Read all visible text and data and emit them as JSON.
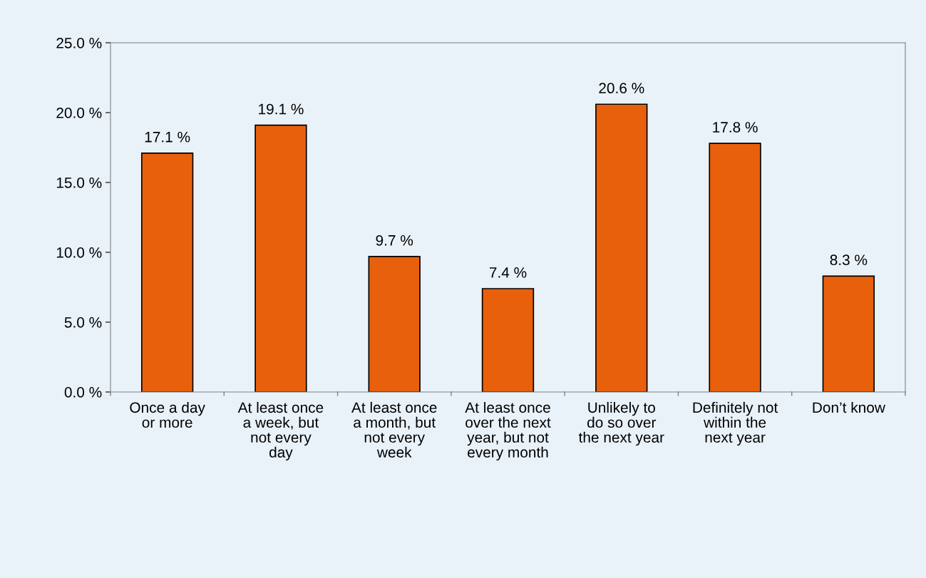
{
  "chart_data": {
    "type": "bar",
    "categories": [
      "Once a day\nor more",
      "At least once\na week, but\nnot every\nday",
      "At least once\na month, but\nnot every\nweek",
      "At least once\nover the next\nyear, but not\nevery month",
      "Unlikely to\ndo so over\nthe next year",
      "Definitely not\nwithin the\nnext year",
      "Don’t know"
    ],
    "values": [
      17.1,
      19.1,
      9.7,
      7.4,
      20.6,
      17.8,
      8.3
    ],
    "value_labels": [
      "17.1 %",
      "19.1 %",
      "9.7 %",
      "7.4 %",
      "20.6 %",
      "17.8 %",
      "8.3 %"
    ],
    "color": "#e8600c",
    "ylim": [
      0,
      25
    ],
    "yticks": [
      {
        "value": 0,
        "label": "0.0 %"
      },
      {
        "value": 5,
        "label": "5.0 %"
      },
      {
        "value": 10,
        "label": "10.0 %"
      },
      {
        "value": 15,
        "label": "15.0 %"
      },
      {
        "value": 20,
        "label": "20.0 %"
      },
      {
        "value": 25,
        "label": "25.0 %"
      }
    ],
    "grid": false
  }
}
